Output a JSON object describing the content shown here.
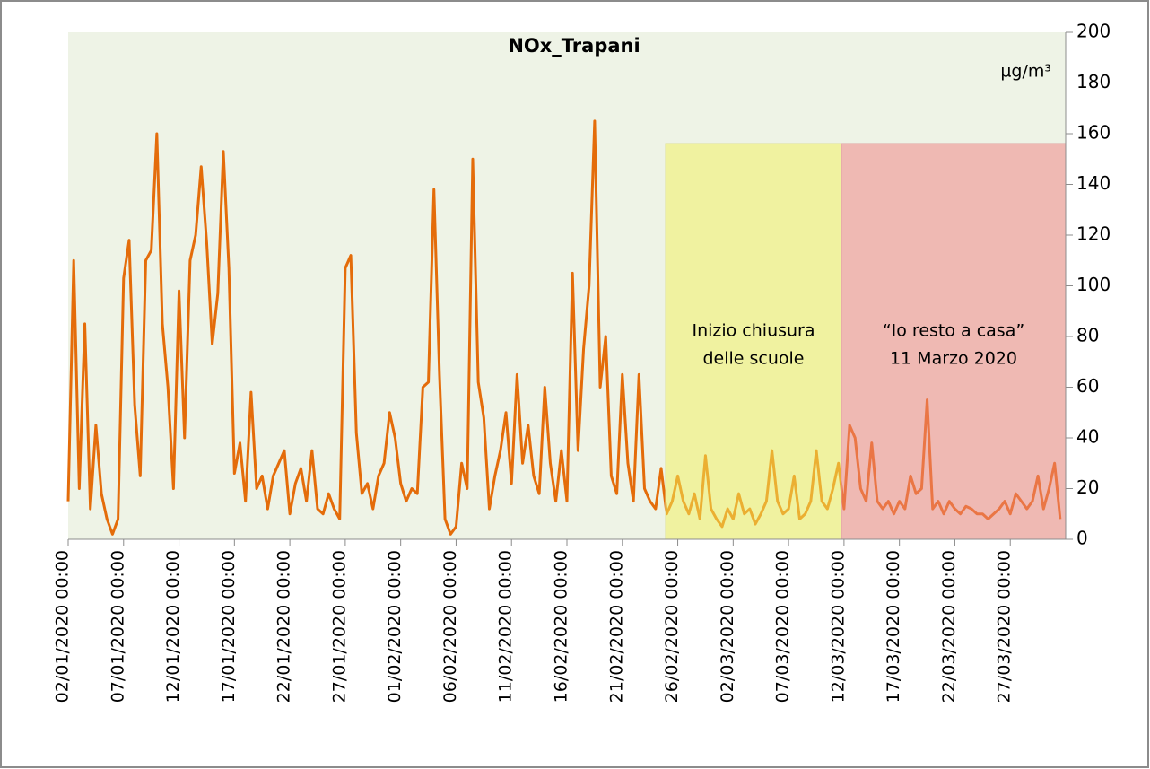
{
  "chart_data": {
    "type": "line",
    "title": "NOx_Trapani",
    "y_label": "µg/m³",
    "color": "#e46c0a",
    "categories": [
      "02/01/2020 00:00",
      null,
      null,
      null,
      null,
      null,
      null,
      null,
      null,
      null,
      "07/01/2020 00:00",
      null,
      null,
      null,
      null,
      null,
      null,
      null,
      null,
      null,
      "12/01/2020 00:00",
      null,
      null,
      null,
      null,
      null,
      null,
      null,
      null,
      null,
      "17/01/2020 00:00",
      null,
      null,
      null,
      null,
      null,
      null,
      null,
      null,
      null,
      "22/01/2020 00:00",
      null,
      null,
      null,
      null,
      null,
      null,
      null,
      null,
      null,
      "27/01/2020 00:00",
      null,
      null,
      null,
      null,
      null,
      null,
      null,
      null,
      null,
      "01/02/2020 00:00",
      null,
      null,
      null,
      null,
      null,
      null,
      null,
      null,
      null,
      "06/02/2020 00:00",
      null,
      null,
      null,
      null,
      null,
      null,
      null,
      null,
      null,
      "11/02/2020 00:00",
      null,
      null,
      null,
      null,
      null,
      null,
      null,
      null,
      null,
      "16/02/2020 00:00",
      null,
      null,
      null,
      null,
      null,
      null,
      null,
      null,
      null,
      "21/02/2020 00:00",
      null,
      null,
      null,
      null,
      null,
      null,
      null,
      null,
      null,
      "26/02/2020 00:00",
      null,
      null,
      null,
      null,
      null,
      null,
      null,
      null,
      null,
      "02/03/2020 00:00",
      null,
      null,
      null,
      null,
      null,
      null,
      null,
      null,
      null,
      "07/03/2020 00:00",
      null,
      null,
      null,
      null,
      null,
      null,
      null,
      null,
      null,
      "12/03/2020 00:00",
      null,
      null,
      null,
      null,
      null,
      null,
      null,
      null,
      null,
      "17/03/2020 00:00",
      null,
      null,
      null,
      null,
      null,
      null,
      null,
      null,
      null,
      "22/03/2020 00:00",
      null,
      null,
      null,
      null,
      null,
      null,
      null,
      null,
      null,
      "27/03/2020 00:00",
      null,
      null,
      null,
      null,
      null,
      null,
      null,
      null,
      null
    ],
    "values": [
      15,
      110,
      20,
      85,
      12,
      45,
      18,
      8,
      2,
      8,
      103,
      118,
      53,
      25,
      110,
      114,
      160,
      85,
      60,
      20,
      98,
      40,
      110,
      120,
      147,
      117,
      77,
      97,
      153,
      107,
      26,
      38,
      15,
      58,
      20,
      25,
      12,
      25,
      30,
      35,
      10,
      22,
      28,
      15,
      35,
      12,
      10,
      18,
      12,
      8,
      107,
      112,
      42,
      18,
      22,
      12,
      25,
      30,
      50,
      40,
      22,
      15,
      20,
      18,
      60,
      62,
      138,
      65,
      8,
      2,
      5,
      30,
      20,
      150,
      62,
      48,
      12,
      25,
      35,
      50,
      22,
      65,
      30,
      45,
      25,
      18,
      60,
      30,
      15,
      35,
      15,
      105,
      35,
      75,
      100,
      165,
      60,
      80,
      25,
      18,
      65,
      30,
      15,
      65,
      20,
      15,
      12,
      28,
      10,
      15,
      25,
      15,
      10,
      18,
      8,
      33,
      12,
      8,
      5,
      12,
      8,
      18,
      10,
      12,
      6,
      10,
      15,
      35,
      15,
      10,
      12,
      25,
      8,
      10,
      15,
      35,
      15,
      12,
      20,
      30,
      12,
      45,
      40,
      20,
      15,
      38,
      15,
      12,
      15,
      10,
      15,
      12,
      25,
      18,
      20,
      55,
      12,
      15,
      10,
      15,
      12,
      10,
      13,
      12,
      10,
      10,
      8,
      10,
      12,
      15,
      10,
      18,
      15,
      12,
      15,
      25,
      12,
      20,
      30,
      8
    ],
    "ylim": [
      0,
      200
    ],
    "yticks": [
      0,
      20,
      40,
      60,
      80,
      100,
      120,
      140,
      160,
      180,
      200
    ],
    "annotations": [
      [
        "Inizio chiusura",
        "delle scuole"
      ],
      [
        "“Io resto a casa”",
        "11 Marzo 2020"
      ]
    ]
  }
}
